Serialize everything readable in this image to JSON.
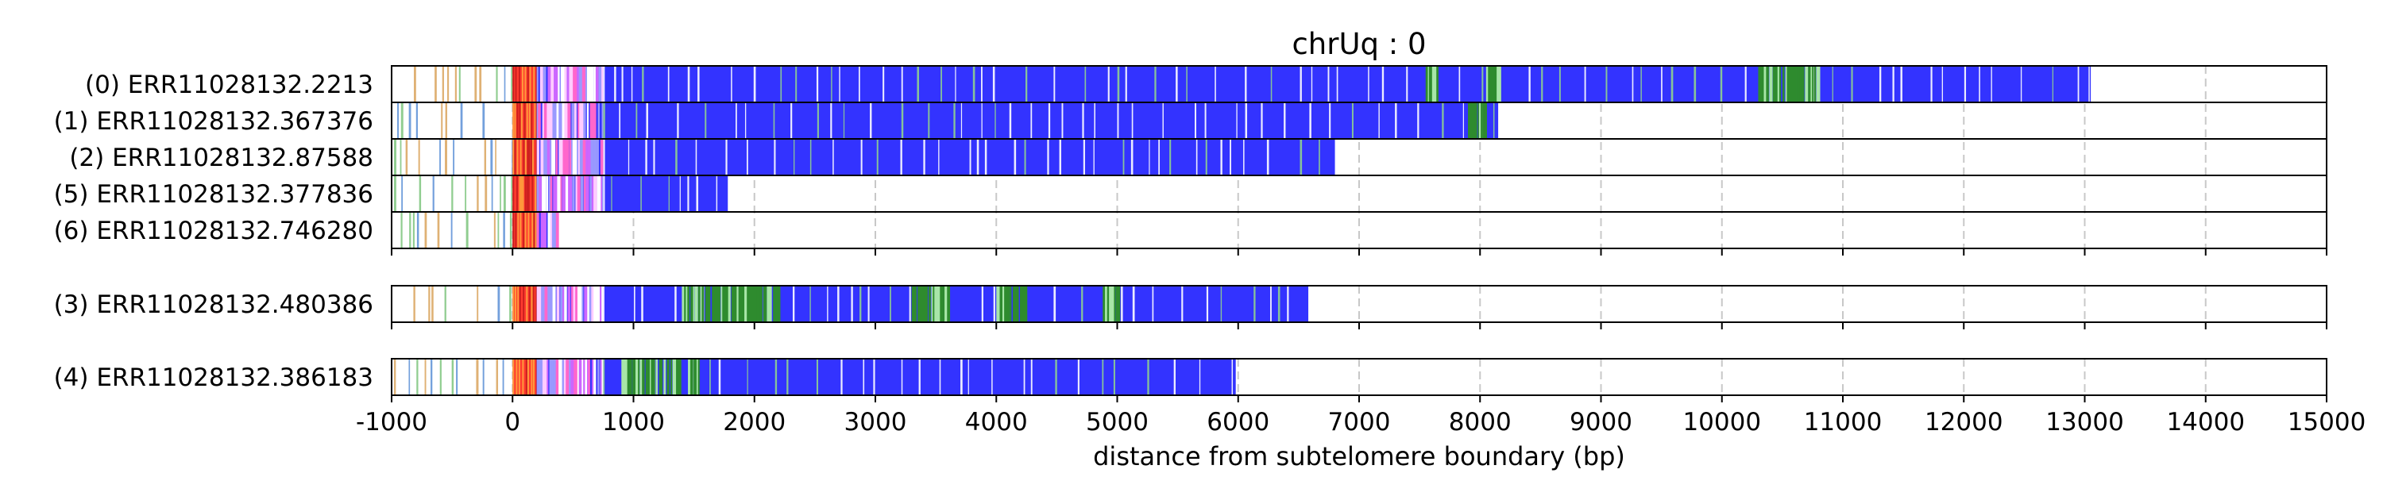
{
  "chart_data": {
    "type": "bar",
    "title": "chrUq : 0",
    "xlabel": "distance from subtelomere boundary (bp)",
    "ylabel": "",
    "xlim": [
      -1000,
      15000
    ],
    "x_ticks": [
      -1000,
      0,
      1000,
      2000,
      3000,
      4000,
      5000,
      6000,
      7000,
      8000,
      9000,
      10000,
      11000,
      12000,
      13000,
      14000,
      15000
    ],
    "grid": "vertical dashed at major ticks",
    "legend": "none",
    "colors": {
      "telomere_repeat": "#3333ff",
      "variant_repeat": "#2e8b2e",
      "boundary_region": "#ff3b2f",
      "transition_repeat": "#cc66ff",
      "subtelomere_minor_1": "#5b8fd6",
      "subtelomere_minor_2": "#7cc47c",
      "subtelomere_minor_3": "#d9a35c",
      "frame": "#000000",
      "grid": "#c8c8c8"
    },
    "groups": [
      {
        "reads": [
          {
            "label": "(0) ERR11028132.2213",
            "start": -1000,
            "end": 13050,
            "green_zones": [
              [
                7550,
                7650
              ],
              [
                8050,
                8150
              ],
              [
                10300,
                10800
              ]
            ]
          },
          {
            "label": "(1) ERR11028132.367376",
            "start": -1000,
            "end": 8150,
            "green_zones": [
              [
                7900,
                8050
              ]
            ]
          },
          {
            "label": "(2) ERR11028132.87588",
            "start": -1000,
            "end": 6800,
            "green_zones": []
          },
          {
            "label": "(5) ERR11028132.377836",
            "start": -1000,
            "end": 1780,
            "green_zones": []
          },
          {
            "label": "(6) ERR11028132.746280",
            "start": -1000,
            "end": 360,
            "green_zones": []
          }
        ]
      },
      {
        "reads": [
          {
            "label": "(3) ERR11028132.480386",
            "start": -1000,
            "end": 6580,
            "green_zones": [
              [
                1400,
                2200
              ],
              [
                3300,
                3600
              ],
              [
                4000,
                4230
              ],
              [
                4880,
                5000
              ]
            ]
          }
        ]
      },
      {
        "reads": [
          {
            "label": "(4) ERR11028132.386183",
            "start": -1000,
            "end": 5980,
            "green_zones": [
              [
                900,
                1380
              ],
              [
                1450,
                1550
              ]
            ]
          }
        ]
      }
    ],
    "telomere_onset": 750,
    "boundary_region": [
      0,
      200
    ],
    "transition_region": [
      200,
      750
    ]
  }
}
